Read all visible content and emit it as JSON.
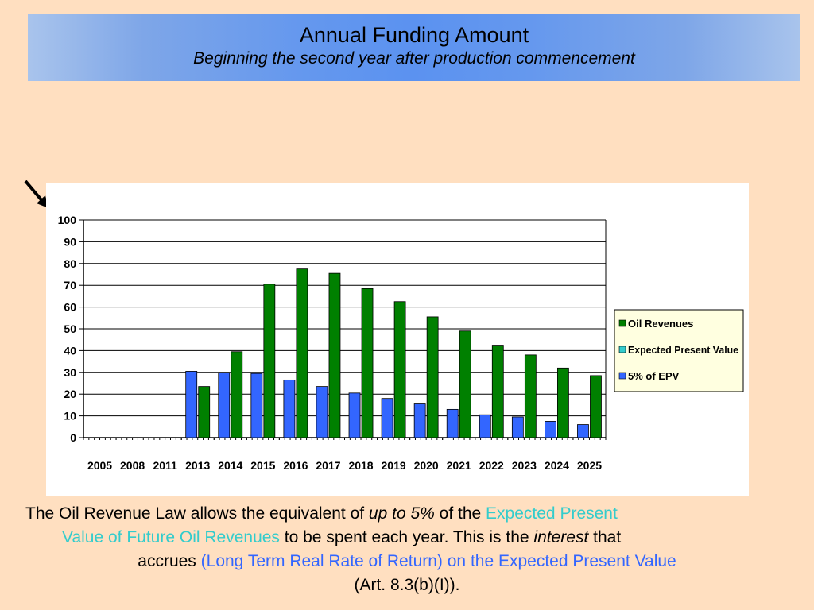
{
  "header": {
    "title": "Annual Funding Amount",
    "subtitle": "Beginning the second year after production commencement"
  },
  "icons": {
    "arrow": "arrow-down-right-icon"
  },
  "chart_data": {
    "type": "bar",
    "categories": [
      "2005",
      "2008",
      "2011",
      "2013",
      "2014",
      "2015",
      "2016",
      "2017",
      "2018",
      "2019",
      "2020",
      "2021",
      "2022",
      "2023",
      "2024",
      "2025"
    ],
    "series": [
      {
        "name": "Oil Revenues",
        "color": "#008000",
        "values": [
          0,
          0,
          0,
          23.5,
          39.5,
          70.5,
          77.5,
          75.5,
          68.5,
          62.5,
          55.5,
          49,
          42.5,
          38,
          32,
          28.5
        ]
      },
      {
        "name": "Expected Present Value",
        "color": "#33CCCC",
        "values": [
          0,
          0,
          0,
          0,
          0,
          0,
          0,
          0,
          0,
          0,
          0,
          0,
          0,
          0,
          0,
          0
        ]
      },
      {
        "name": "5% of EPV",
        "color": "#3366FF",
        "values": [
          0,
          0,
          0,
          30.5,
          30,
          29.5,
          26.5,
          23.5,
          20.5,
          18,
          15.5,
          13,
          10.5,
          9.5,
          7.5,
          6
        ]
      }
    ],
    "yticks": [
      0,
      10,
      20,
      30,
      40,
      50,
      60,
      70,
      80,
      90,
      100
    ],
    "ylim": [
      0,
      100
    ],
    "grid": true,
    "legend": "right"
  },
  "caption": {
    "p1": "The Oil Revenue Law allows the equivalent of ",
    "p1_italic": "up to 5%",
    "p1_b": " of the ",
    "p1_teal": "Expected Present",
    "p2_teal": "Value of Future Oil Revenues",
    "p2_b": " to be spent each year. This is the ",
    "p2_italic": "interest",
    "p2_c": " that",
    "p3_a": "accrues ",
    "p3_blue": "(Long Term Real Rate of Return) on the Expected Present Value",
    "p4": "(Art. 8.3(b)(I))."
  }
}
